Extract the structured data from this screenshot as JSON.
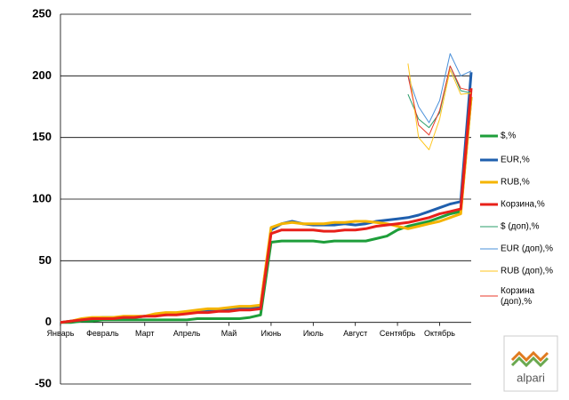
{
  "chart_data": {
    "type": "line",
    "categories": [
      "Январь",
      null,
      null,
      null,
      "Февраль",
      null,
      null,
      null,
      "Март",
      null,
      null,
      null,
      "Апрель",
      null,
      null,
      null,
      "Май",
      null,
      null,
      null,
      "Июнь",
      null,
      null,
      null,
      "Июль",
      null,
      null,
      null,
      "Август",
      null,
      null,
      null,
      "Сентябрь",
      null,
      null,
      null,
      "Октябрь",
      null,
      null,
      null
    ],
    "series": [
      {
        "name": "$,%",
        "color": "#1e9e3a",
        "width": 3,
        "values": [
          0,
          0,
          1,
          1,
          2,
          2,
          2,
          2,
          2,
          2,
          2,
          2,
          2,
          3,
          3,
          3,
          3,
          3,
          4,
          6,
          65,
          66,
          66,
          66,
          66,
          65,
          66,
          66,
          66,
          66,
          68,
          70,
          75,
          78,
          80,
          82,
          85,
          88,
          90,
          183
        ]
      },
      {
        "name": "EUR,%",
        "color": "#1f5fae",
        "width": 3,
        "values": [
          0,
          1,
          2,
          3,
          4,
          4,
          4,
          4,
          5,
          6,
          6,
          7,
          8,
          9,
          10,
          10,
          11,
          12,
          12,
          13,
          75,
          80,
          82,
          80,
          79,
          79,
          79,
          80,
          79,
          80,
          82,
          83,
          84,
          85,
          87,
          90,
          93,
          96,
          98,
          203
        ]
      },
      {
        "name": "RUB,%",
        "color": "#f5b400",
        "width": 3,
        "values": [
          0,
          1,
          3,
          4,
          4,
          4,
          5,
          5,
          5,
          7,
          8,
          8,
          9,
          10,
          11,
          11,
          12,
          13,
          13,
          14,
          77,
          80,
          81,
          80,
          80,
          80,
          81,
          81,
          82,
          82,
          81,
          80,
          78,
          76,
          78,
          80,
          82,
          85,
          88,
          183
        ]
      },
      {
        "name": "Корзина,%",
        "color": "#e8201a",
        "width": 3,
        "values": [
          0,
          1,
          2,
          3,
          3,
          3,
          4,
          4,
          5,
          5,
          6,
          6,
          7,
          8,
          8,
          9,
          9,
          10,
          10,
          11,
          72,
          75,
          75,
          75,
          75,
          74,
          74,
          75,
          75,
          76,
          78,
          79,
          80,
          81,
          83,
          85,
          88,
          90,
          92,
          190
        ]
      },
      {
        "name": "$ (доп),%",
        "color": "#2a9c6a",
        "width": 1,
        "values": [
          null,
          null,
          null,
          null,
          null,
          null,
          null,
          null,
          null,
          null,
          null,
          null,
          null,
          null,
          null,
          null,
          null,
          null,
          null,
          null,
          null,
          null,
          null,
          null,
          null,
          null,
          null,
          null,
          null,
          null,
          null,
          null,
          null,
          185,
          165,
          158,
          170,
          208,
          188,
          186
        ]
      },
      {
        "name": "EUR (доп),%",
        "color": "#4a90d9",
        "width": 1,
        "values": [
          null,
          null,
          null,
          null,
          null,
          null,
          null,
          null,
          null,
          null,
          null,
          null,
          null,
          null,
          null,
          null,
          null,
          null,
          null,
          null,
          null,
          null,
          null,
          null,
          null,
          null,
          null,
          null,
          null,
          null,
          null,
          null,
          null,
          200,
          175,
          162,
          180,
          218,
          200,
          204
        ]
      },
      {
        "name": "RUB (доп),%",
        "color": "#ffc61e",
        "width": 1,
        "values": [
          null,
          null,
          null,
          null,
          null,
          null,
          null,
          null,
          null,
          null,
          null,
          null,
          null,
          null,
          null,
          null,
          null,
          null,
          null,
          null,
          null,
          null,
          null,
          null,
          null,
          null,
          null,
          null,
          null,
          null,
          null,
          null,
          null,
          210,
          150,
          140,
          165,
          205,
          185,
          186
        ]
      },
      {
        "name": "Корзина (доп),%",
        "color": "#e83a2a",
        "width": 1,
        "values": [
          null,
          null,
          null,
          null,
          null,
          null,
          null,
          null,
          null,
          null,
          null,
          null,
          null,
          null,
          null,
          null,
          null,
          null,
          null,
          null,
          null,
          null,
          null,
          null,
          null,
          null,
          null,
          null,
          null,
          null,
          null,
          null,
          null,
          200,
          160,
          152,
          172,
          208,
          190,
          188
        ]
      }
    ],
    "ylim": [
      -50,
      250
    ],
    "yticks": [
      -50,
      0,
      50,
      100,
      150,
      200,
      250
    ],
    "grid": true,
    "logo": "alpari"
  }
}
